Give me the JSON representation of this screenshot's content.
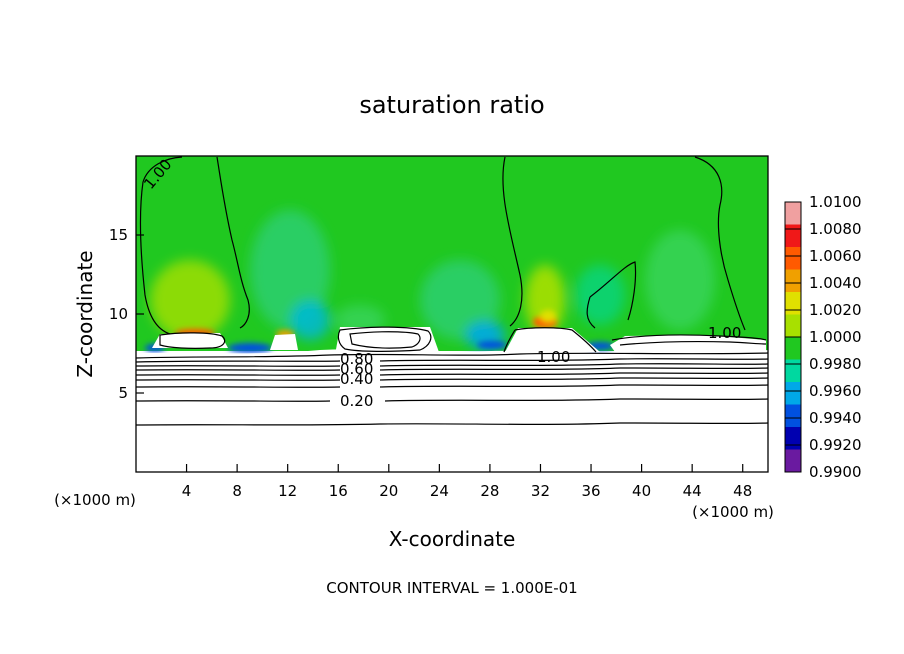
{
  "chart_data": {
    "type": "heatmap",
    "title": "saturation ratio",
    "xlabel": "X-coordinate",
    "ylabel": "Z-coordinate",
    "x_unit": "(×1000 m)",
    "z_unit": "(×1000 m)",
    "footer": "CONTOUR INTERVAL = 1.000E-01",
    "xlim": [
      0,
      50
    ],
    "ylim": [
      0,
      20
    ],
    "x_ticks": [
      4,
      8,
      12,
      16,
      20,
      24,
      28,
      32,
      36,
      40,
      44,
      48
    ],
    "y_ticks": [
      5,
      10,
      15
    ],
    "colorbar": {
      "levels": [
        "1.0100",
        "1.0080",
        "1.0060",
        "1.0040",
        "1.0020",
        "1.0000",
        "0.9980",
        "0.9960",
        "0.9940",
        "0.9920",
        "0.9900"
      ],
      "colors": [
        "#f0a0a0",
        "#f01818",
        "#ff5a00",
        "#f0a000",
        "#e0e000",
        "#a8e000",
        "#20c820",
        "#00d8a0",
        "#00a8e8",
        "#0050e0",
        "#0000b0",
        "#6a1aa0"
      ]
    },
    "contour_labels": [
      {
        "text": "1.00",
        "x": 2.3,
        "z": 19.0
      },
      {
        "text": "1.00",
        "x": 46.0,
        "z": 8.9
      },
      {
        "text": "1.00",
        "x": 33.0,
        "z": 7.4
      },
      {
        "text": "0.80",
        "x": 17.5,
        "z": 7.1
      },
      {
        "text": "0.60",
        "x": 17.5,
        "z": 6.6
      },
      {
        "text": "0.40",
        "x": 17.5,
        "z": 5.9
      },
      {
        "text": "0.20",
        "x": 17.5,
        "z": 4.6
      }
    ],
    "grid": false
  }
}
